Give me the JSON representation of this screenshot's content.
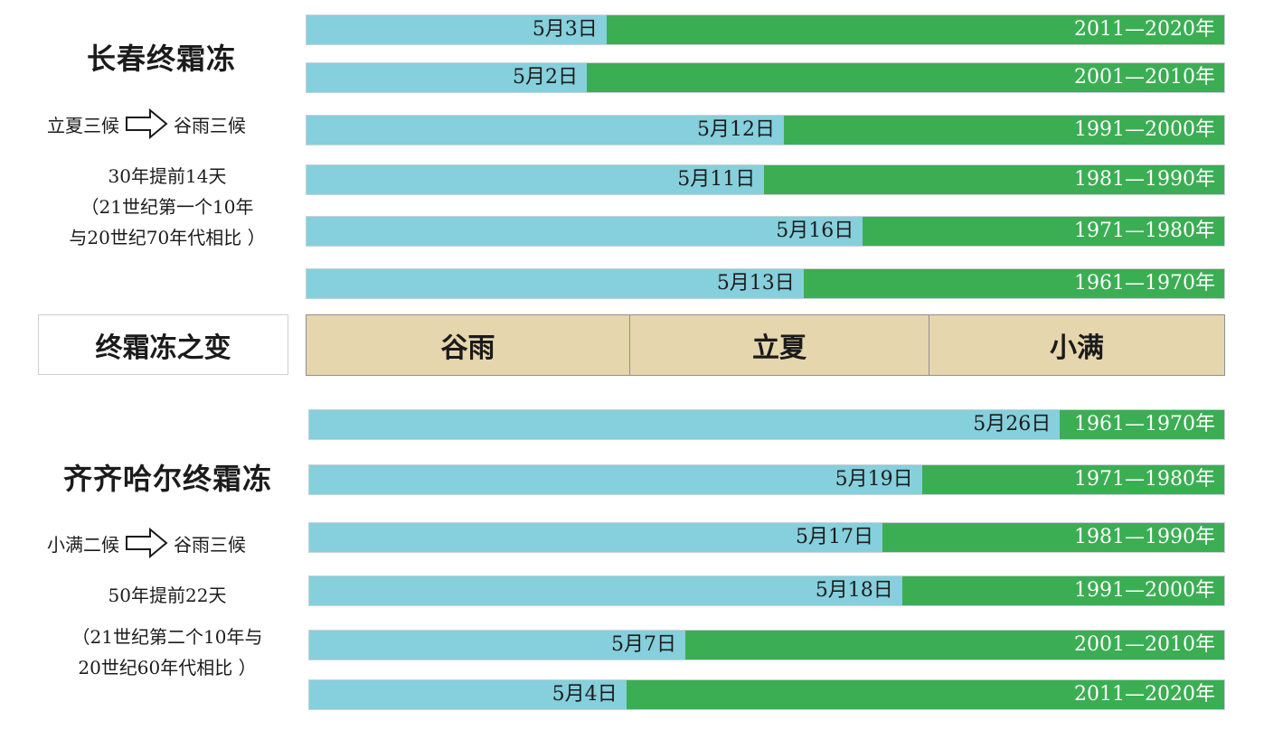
{
  "chart_data": {
    "type": "bar",
    "title": "终霜冻之变",
    "solar_terms": [
      "谷雨",
      "立夏",
      "小满"
    ],
    "panels": [
      {
        "name": "changchun",
        "title": "长春终霜冻",
        "shift_from": "立夏三候",
        "shift_to": "谷雨三候",
        "note_lines": [
          "30年提前14天",
          "（21世纪第一个10年",
          "与20世纪70年代相比 ）"
        ],
        "series": [
          {
            "label": "2011—2020年",
            "value": "5月3日",
            "day": 3
          },
          {
            "label": "2001—2010年",
            "value": "5月2日",
            "day": 2
          },
          {
            "label": "1991—2000年",
            "value": "5月12日",
            "day": 12
          },
          {
            "label": "1981—1990年",
            "value": "5月11日",
            "day": 11
          },
          {
            "label": "1971—1980年",
            "value": "5月16日",
            "day": 16
          },
          {
            "label": "1961—1970年",
            "value": "5月13日",
            "day": 13
          }
        ]
      },
      {
        "name": "qiqihar",
        "title": "齐齐哈尔终霜冻",
        "shift_from": "小满二候",
        "shift_to": "谷雨三候",
        "note_lines": [
          "50年提前22天",
          "（21世纪第二个10年与",
          "20世纪60年代相比 ）"
        ],
        "series": [
          {
            "label": "1961—1970年",
            "value": "5月26日",
            "day": 26
          },
          {
            "label": "1971—1980年",
            "value": "5月19日",
            "day": 19
          },
          {
            "label": "1981—1990年",
            "value": "5月17日",
            "day": 17
          },
          {
            "label": "1991—2000年",
            "value": "5月18日",
            "day": 18
          },
          {
            "label": "2001—2010年",
            "value": "5月7日",
            "day": 7
          },
          {
            "label": "2011—2020年",
            "value": "5月4日",
            "day": 4
          }
        ]
      }
    ]
  },
  "icons": {
    "arrow": "right-arrow-outline-icon"
  },
  "colors": {
    "early_part": "#86cfdc",
    "late_part": "#3bae53",
    "terms_band": "#e6d6ad"
  }
}
